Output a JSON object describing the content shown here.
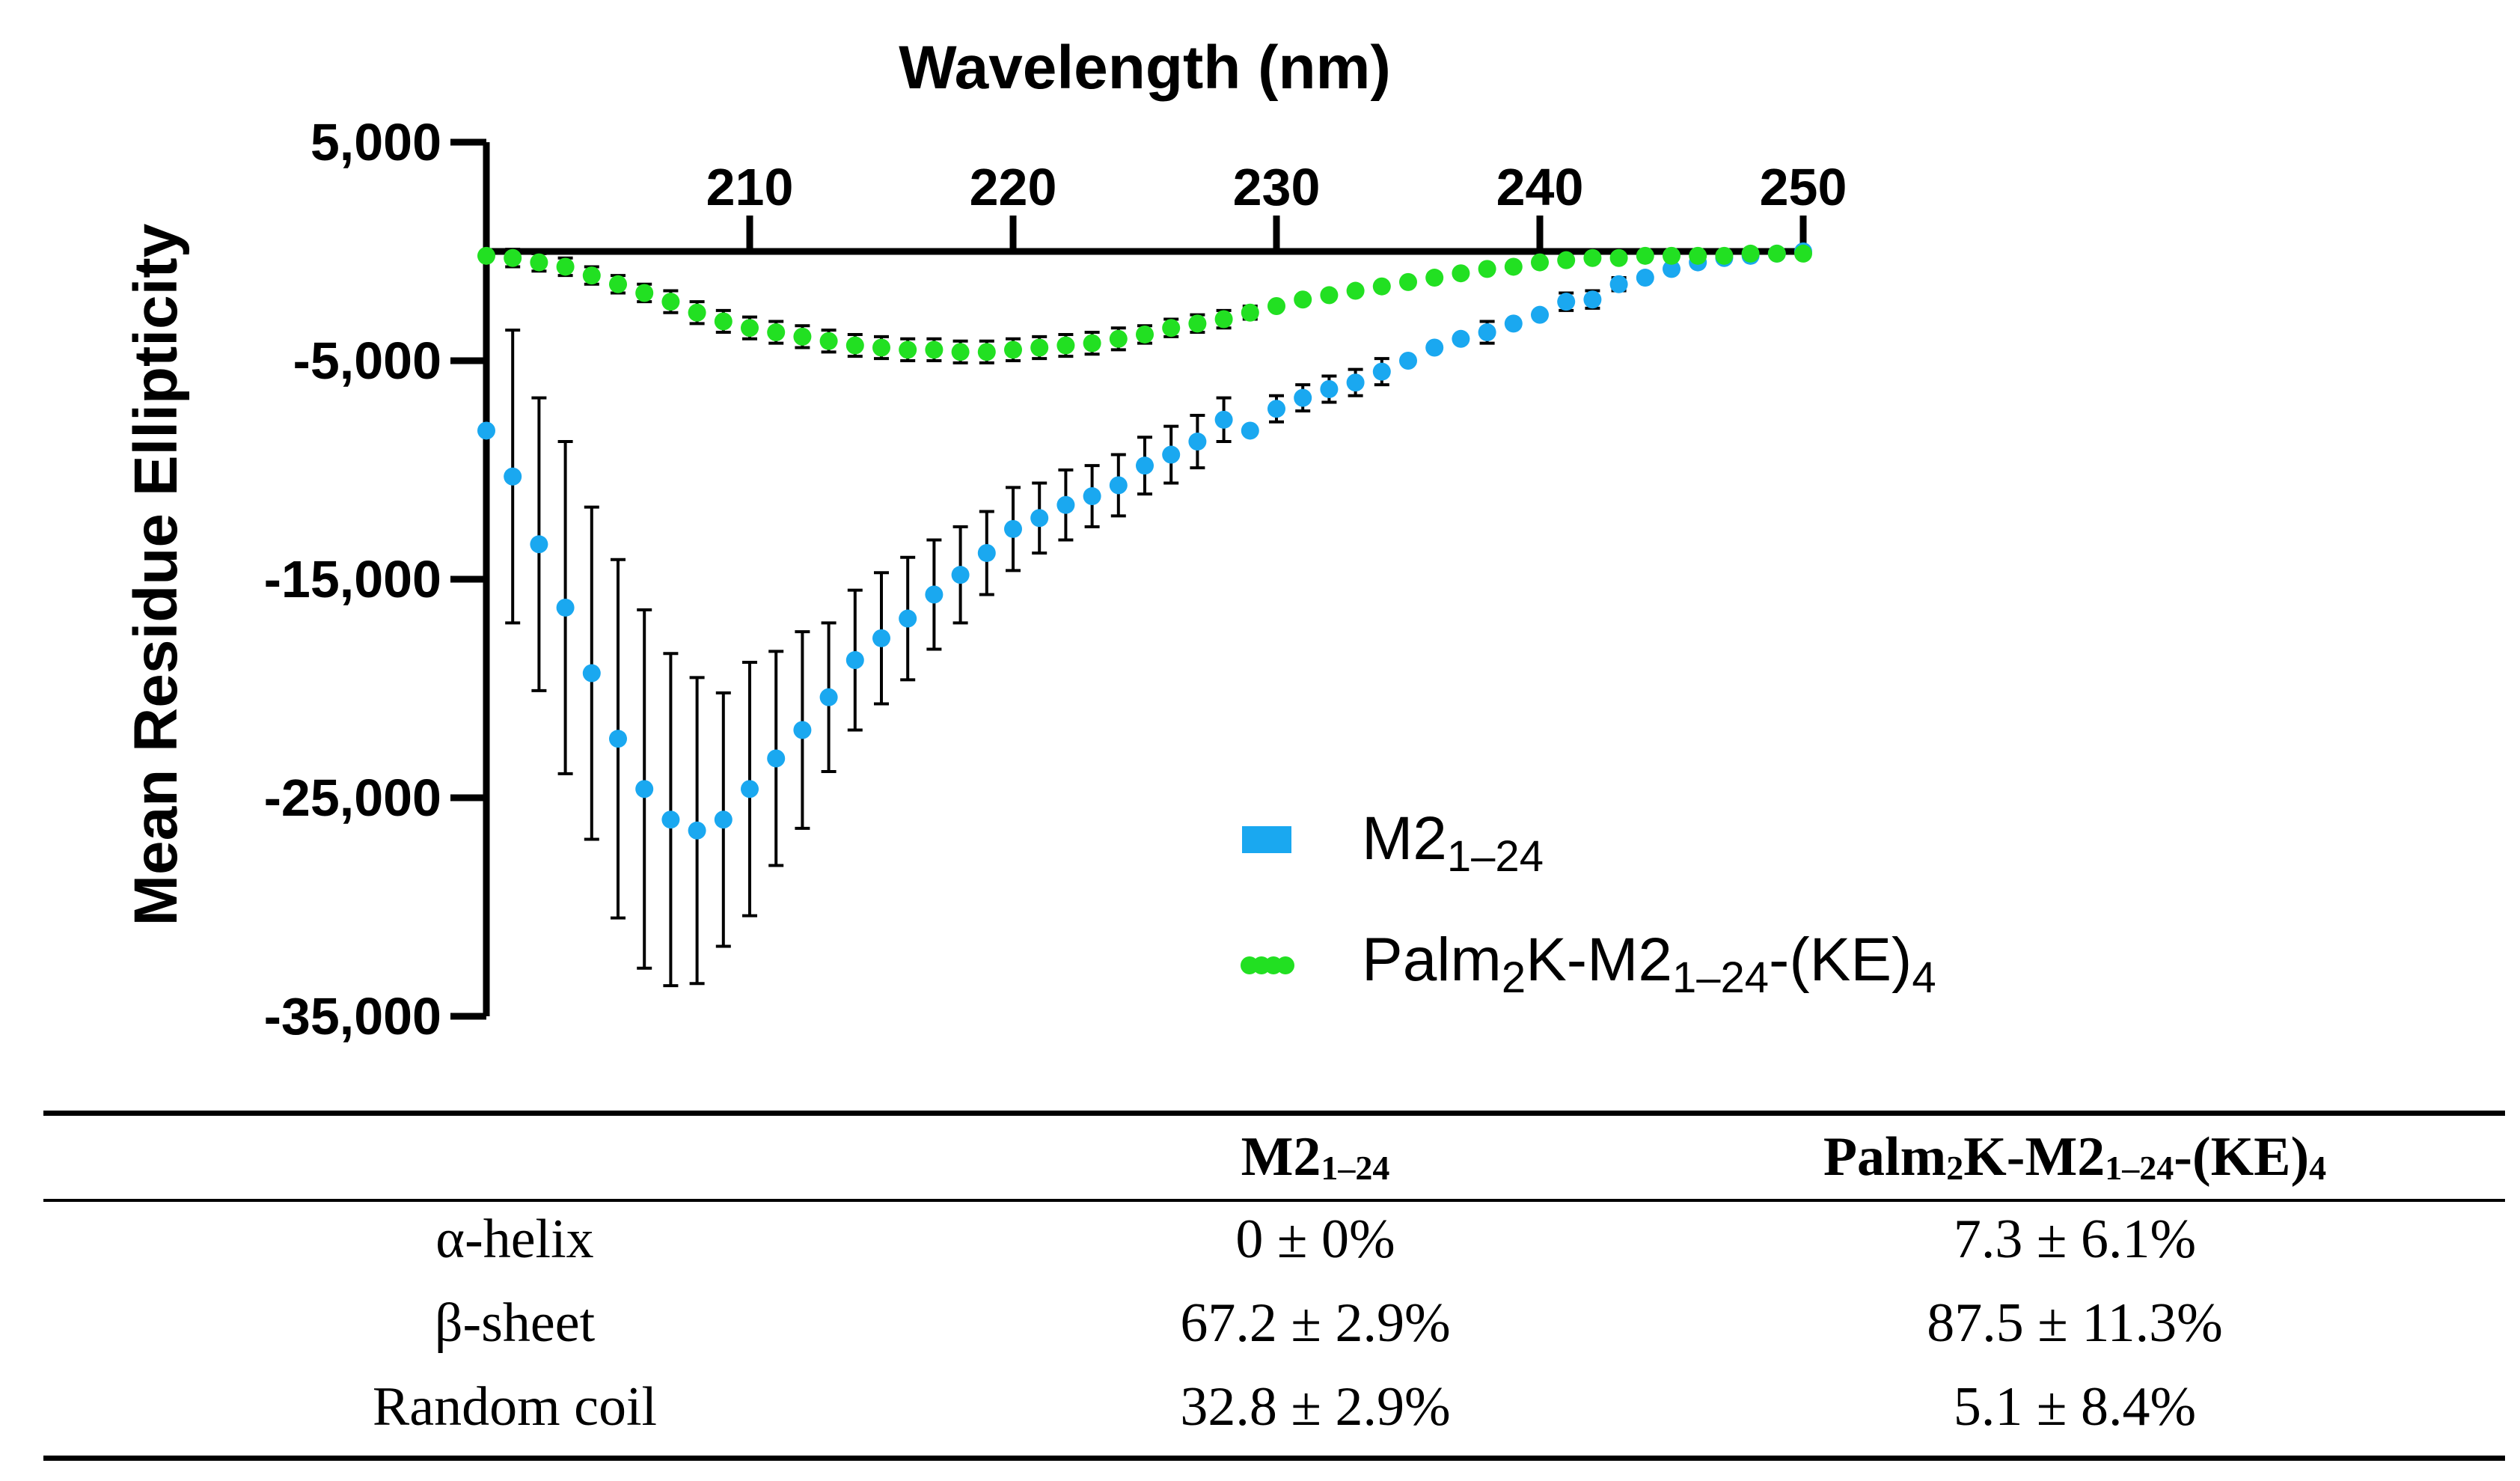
{
  "chart_data": {
    "type": "scatter",
    "xlabel": "Wavelength (nm)",
    "ylabel": "Mean Residue Ellipticity",
    "xlim": [
      200,
      250
    ],
    "ylim": [
      -35000,
      5000
    ],
    "x_ticks": [
      "210",
      "220",
      "230",
      "240",
      "250"
    ],
    "y_ticks": [
      "5,000",
      "-5,000",
      "-15,000",
      "-25,000",
      "-35,000"
    ],
    "legend_position": "lower-right",
    "series": [
      {
        "name": "M2",
        "name_sub": "1–24",
        "color": "#1aa8f0",
        "x": [
          200,
          201,
          202,
          203,
          204,
          205,
          206,
          207,
          208,
          209,
          210,
          211,
          212,
          213,
          214,
          215,
          216,
          217,
          218,
          219,
          220,
          221,
          222,
          223,
          224,
          225,
          226,
          227,
          228,
          229,
          230,
          231,
          232,
          233,
          234,
          235,
          236,
          237,
          238,
          239,
          240,
          241,
          242,
          243,
          244,
          245,
          246,
          247,
          248,
          249,
          250
        ],
        "y": [
          -8200,
          -10300,
          -13400,
          -16300,
          -19300,
          -22300,
          -24600,
          -26000,
          -26500,
          -26000,
          -24600,
          -23200,
          -21900,
          -20400,
          -18700,
          -17700,
          -16800,
          -15700,
          -14800,
          -13800,
          -12700,
          -12200,
          -11600,
          -11200,
          -10700,
          -9800,
          -9300,
          -8700,
          -7700,
          -8200,
          -7200,
          -6700,
          -6300,
          -6000,
          -5500,
          -5000,
          -4400,
          -4000,
          -3700,
          -3300,
          -2900,
          -2300,
          -2200,
          -1500,
          -1200,
          -800,
          -500,
          -300,
          -200,
          -100,
          0
        ],
        "err": [
          0,
          6700,
          6700,
          7600,
          7600,
          8200,
          8200,
          7600,
          7000,
          5800,
          5800,
          4900,
          4500,
          3400,
          3200,
          3000,
          2800,
          2500,
          2200,
          1900,
          1900,
          1600,
          1600,
          1400,
          1400,
          1300,
          1300,
          1200,
          1000,
          0,
          600,
          600,
          600,
          600,
          600,
          0,
          0,
          0,
          500,
          0,
          0,
          400,
          400,
          300,
          0,
          0,
          0,
          0,
          0,
          0,
          0
        ]
      },
      {
        "name": "Palm",
        "name_sub": "2",
        "name_mid": "K-M2",
        "name_sub2": "1–24",
        "name_end": "-(KE)",
        "name_sub3": "4",
        "color": "#22e022",
        "x": [
          200,
          201,
          202,
          203,
          204,
          205,
          206,
          207,
          208,
          209,
          210,
          211,
          212,
          213,
          214,
          215,
          216,
          217,
          218,
          219,
          220,
          221,
          222,
          223,
          224,
          225,
          226,
          227,
          228,
          229,
          230,
          231,
          232,
          233,
          234,
          235,
          236,
          237,
          238,
          239,
          240,
          241,
          242,
          243,
          244,
          245,
          246,
          247,
          248,
          249,
          250
        ],
        "y": [
          -200,
          -300,
          -500,
          -700,
          -1100,
          -1500,
          -1900,
          -2300,
          -2800,
          -3200,
          -3500,
          -3700,
          -3900,
          -4100,
          -4300,
          -4400,
          -4500,
          -4500,
          -4600,
          -4600,
          -4500,
          -4400,
          -4300,
          -4200,
          -4000,
          -3800,
          -3500,
          -3300,
          -3100,
          -2800,
          -2500,
          -2200,
          -2000,
          -1800,
          -1600,
          -1400,
          -1200,
          -1000,
          -800,
          -700,
          -500,
          -400,
          -300,
          -300,
          -200,
          -200,
          -200,
          -200,
          -100,
          -100,
          -100
        ],
        "err": [
          0,
          400,
          400,
          400,
          400,
          400,
          400,
          500,
          500,
          500,
          500,
          500,
          500,
          500,
          500,
          500,
          500,
          500,
          500,
          500,
          500,
          500,
          500,
          500,
          500,
          400,
          400,
          400,
          400,
          300,
          0,
          0,
          0,
          0,
          0,
          0,
          0,
          0,
          0,
          0,
          0,
          0,
          0,
          0,
          0,
          0,
          0,
          0,
          0,
          0,
          0
        ]
      }
    ]
  },
  "table": {
    "headers": [
      {
        "text": ""
      },
      {
        "main": "M2",
        "sub": "1–24"
      },
      {
        "p1": "Palm",
        "s1": "2",
        "p2": "K-M2",
        "s2": "1–24",
        "p3": "-(KE)",
        "s3": "4"
      }
    ],
    "rows": [
      {
        "label": "α-helix",
        "m2": "0 ± 0%",
        "palm": "7.3 ± 6.1%"
      },
      {
        "label": "β-sheet",
        "m2": "67.2 ± 2.9%",
        "palm": "87.5 ± 11.3%"
      },
      {
        "label": "Random coil",
        "m2": "32.8 ± 2.9%",
        "palm": "5.1 ± 8.4%"
      }
    ]
  }
}
